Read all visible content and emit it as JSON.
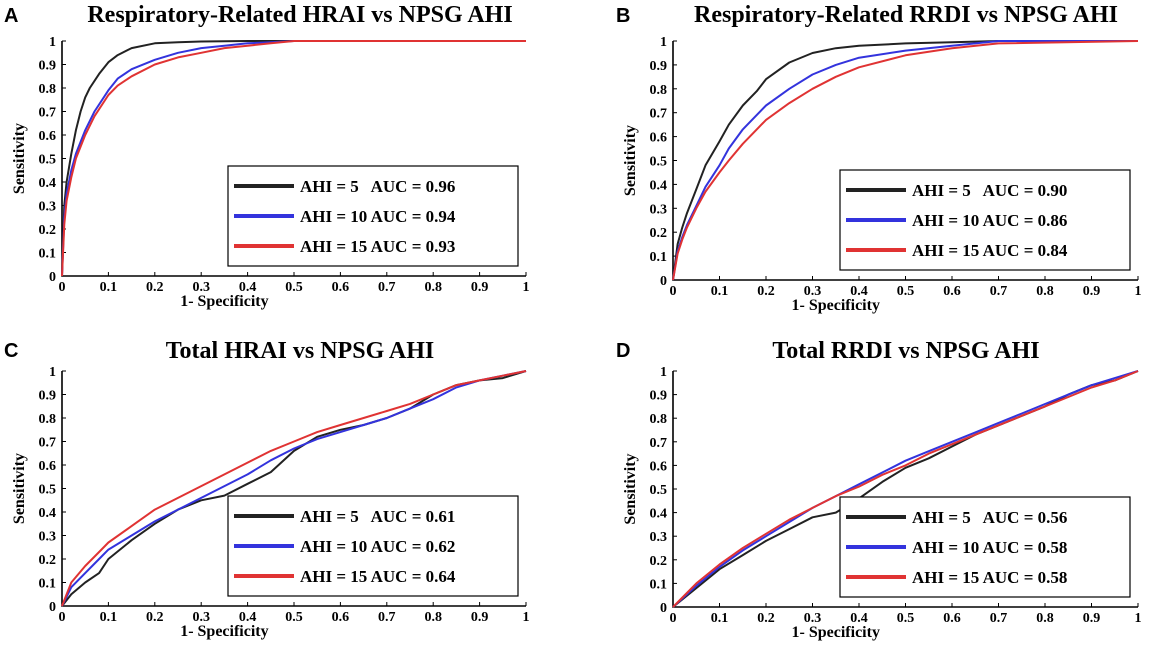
{
  "figure": {
    "panels": [
      "A",
      "B",
      "C",
      "D"
    ]
  },
  "chart_data": [
    {
      "type": "line",
      "panel": "A",
      "title": "Respiratory-Related HRAI vs NPSG AHI",
      "xlabel": "1- Specificity",
      "ylabel": "Sensitivity",
      "xlim": [
        0,
        1
      ],
      "ylim": [
        0,
        1
      ],
      "xticks": [
        "0",
        "0.1",
        "0.2",
        "0.3",
        "0.4",
        "0.5",
        "0.6",
        "0.7",
        "0.8",
        "0.9",
        "1"
      ],
      "yticks": [
        "0",
        "0.1",
        "0.2",
        "0.3",
        "0.4",
        "0.5",
        "0.6",
        "0.7",
        "0.8",
        "0.9",
        "1"
      ],
      "legend_position": "bottom-right",
      "series": [
        {
          "name": "AHI = 5   AUC = 0.96",
          "color": "#222222",
          "x": [
            0,
            0.005,
            0.01,
            0.02,
            0.03,
            0.04,
            0.05,
            0.06,
            0.08,
            0.1,
            0.12,
            0.15,
            0.2,
            0.25,
            0.3,
            0.4,
            0.5,
            1
          ],
          "y": [
            0,
            0.3,
            0.4,
            0.52,
            0.62,
            0.7,
            0.76,
            0.8,
            0.86,
            0.91,
            0.94,
            0.97,
            0.99,
            0.995,
            0.998,
            1,
            1,
            1
          ]
        },
        {
          "name": "AHI = 10 AUC = 0.94",
          "color": "#3333dd",
          "x": [
            0,
            0.005,
            0.01,
            0.02,
            0.03,
            0.05,
            0.07,
            0.1,
            0.12,
            0.15,
            0.2,
            0.25,
            0.3,
            0.35,
            0.4,
            0.45,
            0.5,
            1
          ],
          "y": [
            0,
            0.25,
            0.35,
            0.45,
            0.52,
            0.62,
            0.7,
            0.79,
            0.84,
            0.88,
            0.92,
            0.95,
            0.97,
            0.98,
            0.99,
            0.995,
            1,
            1
          ]
        },
        {
          "name": "AHI = 15 AUC = 0.93",
          "color": "#e03333",
          "x": [
            0,
            0.005,
            0.01,
            0.02,
            0.03,
            0.05,
            0.07,
            0.1,
            0.12,
            0.15,
            0.2,
            0.25,
            0.3,
            0.35,
            0.4,
            0.45,
            0.5,
            1
          ],
          "y": [
            0,
            0.22,
            0.32,
            0.42,
            0.5,
            0.6,
            0.68,
            0.77,
            0.81,
            0.85,
            0.9,
            0.93,
            0.95,
            0.97,
            0.98,
            0.99,
            1,
            1
          ]
        }
      ]
    },
    {
      "type": "line",
      "panel": "B",
      "title": "Respiratory-Related RRDI vs NPSG AHI",
      "xlabel": "1- Specificity",
      "ylabel": "Sensitivity",
      "xlim": [
        0,
        1
      ],
      "ylim": [
        0,
        1
      ],
      "xticks": [
        "0",
        "0.1",
        "0.2",
        "0.3",
        "0.4",
        "0.5",
        "0.6",
        "0.7",
        "0.8",
        "0.9",
        "1"
      ],
      "yticks": [
        "0",
        "0.1",
        "0.2",
        "0.3",
        "0.4",
        "0.5",
        "0.6",
        "0.7",
        "0.8",
        "0.9",
        "1"
      ],
      "legend_position": "bottom-right",
      "series": [
        {
          "name": "AHI = 5   AUC = 0.90",
          "color": "#222222",
          "x": [
            0,
            0.01,
            0.02,
            0.03,
            0.05,
            0.07,
            0.1,
            0.12,
            0.15,
            0.18,
            0.2,
            0.25,
            0.3,
            0.35,
            0.4,
            0.5,
            0.6,
            0.7,
            1
          ],
          "y": [
            0,
            0.15,
            0.22,
            0.28,
            0.38,
            0.48,
            0.58,
            0.65,
            0.73,
            0.79,
            0.84,
            0.91,
            0.95,
            0.97,
            0.98,
            0.99,
            0.995,
            1,
            1
          ]
        },
        {
          "name": "AHI = 10 AUC = 0.86",
          "color": "#3333dd",
          "x": [
            0,
            0.01,
            0.02,
            0.03,
            0.05,
            0.07,
            0.1,
            0.12,
            0.15,
            0.2,
            0.25,
            0.3,
            0.35,
            0.4,
            0.5,
            0.6,
            0.7,
            1
          ],
          "y": [
            0,
            0.12,
            0.18,
            0.23,
            0.31,
            0.39,
            0.48,
            0.55,
            0.63,
            0.73,
            0.8,
            0.86,
            0.9,
            0.93,
            0.96,
            0.98,
            1,
            1
          ]
        },
        {
          "name": "AHI = 15 AUC = 0.84",
          "color": "#e03333",
          "x": [
            0,
            0.01,
            0.02,
            0.03,
            0.05,
            0.07,
            0.1,
            0.12,
            0.15,
            0.2,
            0.25,
            0.3,
            0.35,
            0.4,
            0.5,
            0.6,
            0.7,
            1
          ],
          "y": [
            0,
            0.11,
            0.17,
            0.22,
            0.3,
            0.37,
            0.45,
            0.5,
            0.57,
            0.67,
            0.74,
            0.8,
            0.85,
            0.89,
            0.94,
            0.97,
            0.99,
            1
          ]
        }
      ]
    },
    {
      "type": "line",
      "panel": "C",
      "title": "Total HRAI vs NPSG AHI",
      "xlabel": "1- Specificity",
      "ylabel": "Sensitivity",
      "xlim": [
        0,
        1
      ],
      "ylim": [
        0,
        1
      ],
      "xticks": [
        "0",
        "0.1",
        "0.2",
        "0.3",
        "0.4",
        "0.5",
        "0.6",
        "0.7",
        "0.8",
        "0.9",
        "1"
      ],
      "yticks": [
        "0",
        "0.1",
        "0.2",
        "0.3",
        "0.4",
        "0.5",
        "0.6",
        "0.7",
        "0.8",
        "0.9",
        "1"
      ],
      "legend_position": "bottom-right",
      "series": [
        {
          "name": "AHI = 5   AUC = 0.61",
          "color": "#222222",
          "x": [
            0,
            0.02,
            0.05,
            0.08,
            0.1,
            0.15,
            0.2,
            0.25,
            0.3,
            0.35,
            0.4,
            0.45,
            0.5,
            0.55,
            0.6,
            0.65,
            0.7,
            0.75,
            0.8,
            0.85,
            0.9,
            0.95,
            1
          ],
          "y": [
            0,
            0.05,
            0.1,
            0.14,
            0.2,
            0.28,
            0.35,
            0.41,
            0.45,
            0.47,
            0.52,
            0.57,
            0.66,
            0.72,
            0.75,
            0.77,
            0.8,
            0.84,
            0.9,
            0.94,
            0.96,
            0.97,
            1
          ]
        },
        {
          "name": "AHI = 10 AUC = 0.62",
          "color": "#3333dd",
          "x": [
            0,
            0.02,
            0.05,
            0.08,
            0.1,
            0.15,
            0.2,
            0.25,
            0.3,
            0.35,
            0.4,
            0.45,
            0.5,
            0.55,
            0.6,
            0.65,
            0.7,
            0.75,
            0.8,
            0.85,
            0.9,
            0.95,
            1
          ],
          "y": [
            0,
            0.08,
            0.14,
            0.2,
            0.24,
            0.3,
            0.36,
            0.41,
            0.46,
            0.51,
            0.56,
            0.62,
            0.67,
            0.71,
            0.74,
            0.77,
            0.8,
            0.84,
            0.88,
            0.93,
            0.96,
            0.98,
            1
          ]
        },
        {
          "name": "AHI = 15 AUC = 0.64",
          "color": "#e03333",
          "x": [
            0,
            0.02,
            0.05,
            0.08,
            0.1,
            0.15,
            0.2,
            0.25,
            0.3,
            0.35,
            0.4,
            0.45,
            0.5,
            0.55,
            0.6,
            0.65,
            0.7,
            0.75,
            0.8,
            0.85,
            0.9,
            0.95,
            1
          ],
          "y": [
            0,
            0.1,
            0.17,
            0.23,
            0.27,
            0.34,
            0.41,
            0.46,
            0.51,
            0.56,
            0.61,
            0.66,
            0.7,
            0.74,
            0.77,
            0.8,
            0.83,
            0.86,
            0.9,
            0.94,
            0.96,
            0.98,
            1
          ]
        }
      ]
    },
    {
      "type": "line",
      "panel": "D",
      "title": "Total RRDI vs NPSG AHI",
      "xlabel": "1- Specificity",
      "ylabel": "Sensitivity",
      "xlim": [
        0,
        1
      ],
      "ylim": [
        0,
        1
      ],
      "xticks": [
        "0",
        "0.1",
        "0.2",
        "0.3",
        "0.4",
        "0.5",
        "0.6",
        "0.7",
        "0.8",
        "0.9",
        "1"
      ],
      "yticks": [
        "0",
        "0.1",
        "0.2",
        "0.3",
        "0.4",
        "0.5",
        "0.6",
        "0.7",
        "0.8",
        "0.9",
        "1"
      ],
      "legend_position": "bottom-right",
      "series": [
        {
          "name": "AHI = 5   AUC = 0.56",
          "color": "#222222",
          "x": [
            0,
            0.05,
            0.1,
            0.15,
            0.2,
            0.25,
            0.3,
            0.35,
            0.4,
            0.45,
            0.5,
            0.55,
            0.6,
            0.65,
            0.7,
            0.75,
            0.8,
            0.85,
            0.9,
            0.95,
            1
          ],
          "y": [
            0,
            0.08,
            0.16,
            0.22,
            0.28,
            0.33,
            0.38,
            0.4,
            0.46,
            0.53,
            0.59,
            0.63,
            0.68,
            0.73,
            0.77,
            0.81,
            0.85,
            0.9,
            0.94,
            0.96,
            1
          ]
        },
        {
          "name": "AHI = 10 AUC = 0.58",
          "color": "#3333dd",
          "x": [
            0,
            0.05,
            0.1,
            0.15,
            0.2,
            0.25,
            0.3,
            0.35,
            0.4,
            0.45,
            0.5,
            0.55,
            0.6,
            0.65,
            0.7,
            0.75,
            0.8,
            0.85,
            0.9,
            0.95,
            1
          ],
          "y": [
            0,
            0.09,
            0.17,
            0.24,
            0.3,
            0.36,
            0.42,
            0.47,
            0.52,
            0.57,
            0.62,
            0.66,
            0.7,
            0.74,
            0.78,
            0.82,
            0.86,
            0.9,
            0.94,
            0.97,
            1
          ]
        },
        {
          "name": "AHI = 15 AUC = 0.58",
          "color": "#e03333",
          "x": [
            0,
            0.05,
            0.1,
            0.15,
            0.2,
            0.25,
            0.3,
            0.35,
            0.4,
            0.45,
            0.5,
            0.55,
            0.6,
            0.65,
            0.7,
            0.75,
            0.8,
            0.85,
            0.9,
            0.95,
            1
          ],
          "y": [
            0,
            0.1,
            0.18,
            0.25,
            0.31,
            0.37,
            0.42,
            0.47,
            0.51,
            0.56,
            0.6,
            0.65,
            0.69,
            0.73,
            0.77,
            0.81,
            0.85,
            0.89,
            0.93,
            0.96,
            1
          ]
        }
      ]
    }
  ]
}
